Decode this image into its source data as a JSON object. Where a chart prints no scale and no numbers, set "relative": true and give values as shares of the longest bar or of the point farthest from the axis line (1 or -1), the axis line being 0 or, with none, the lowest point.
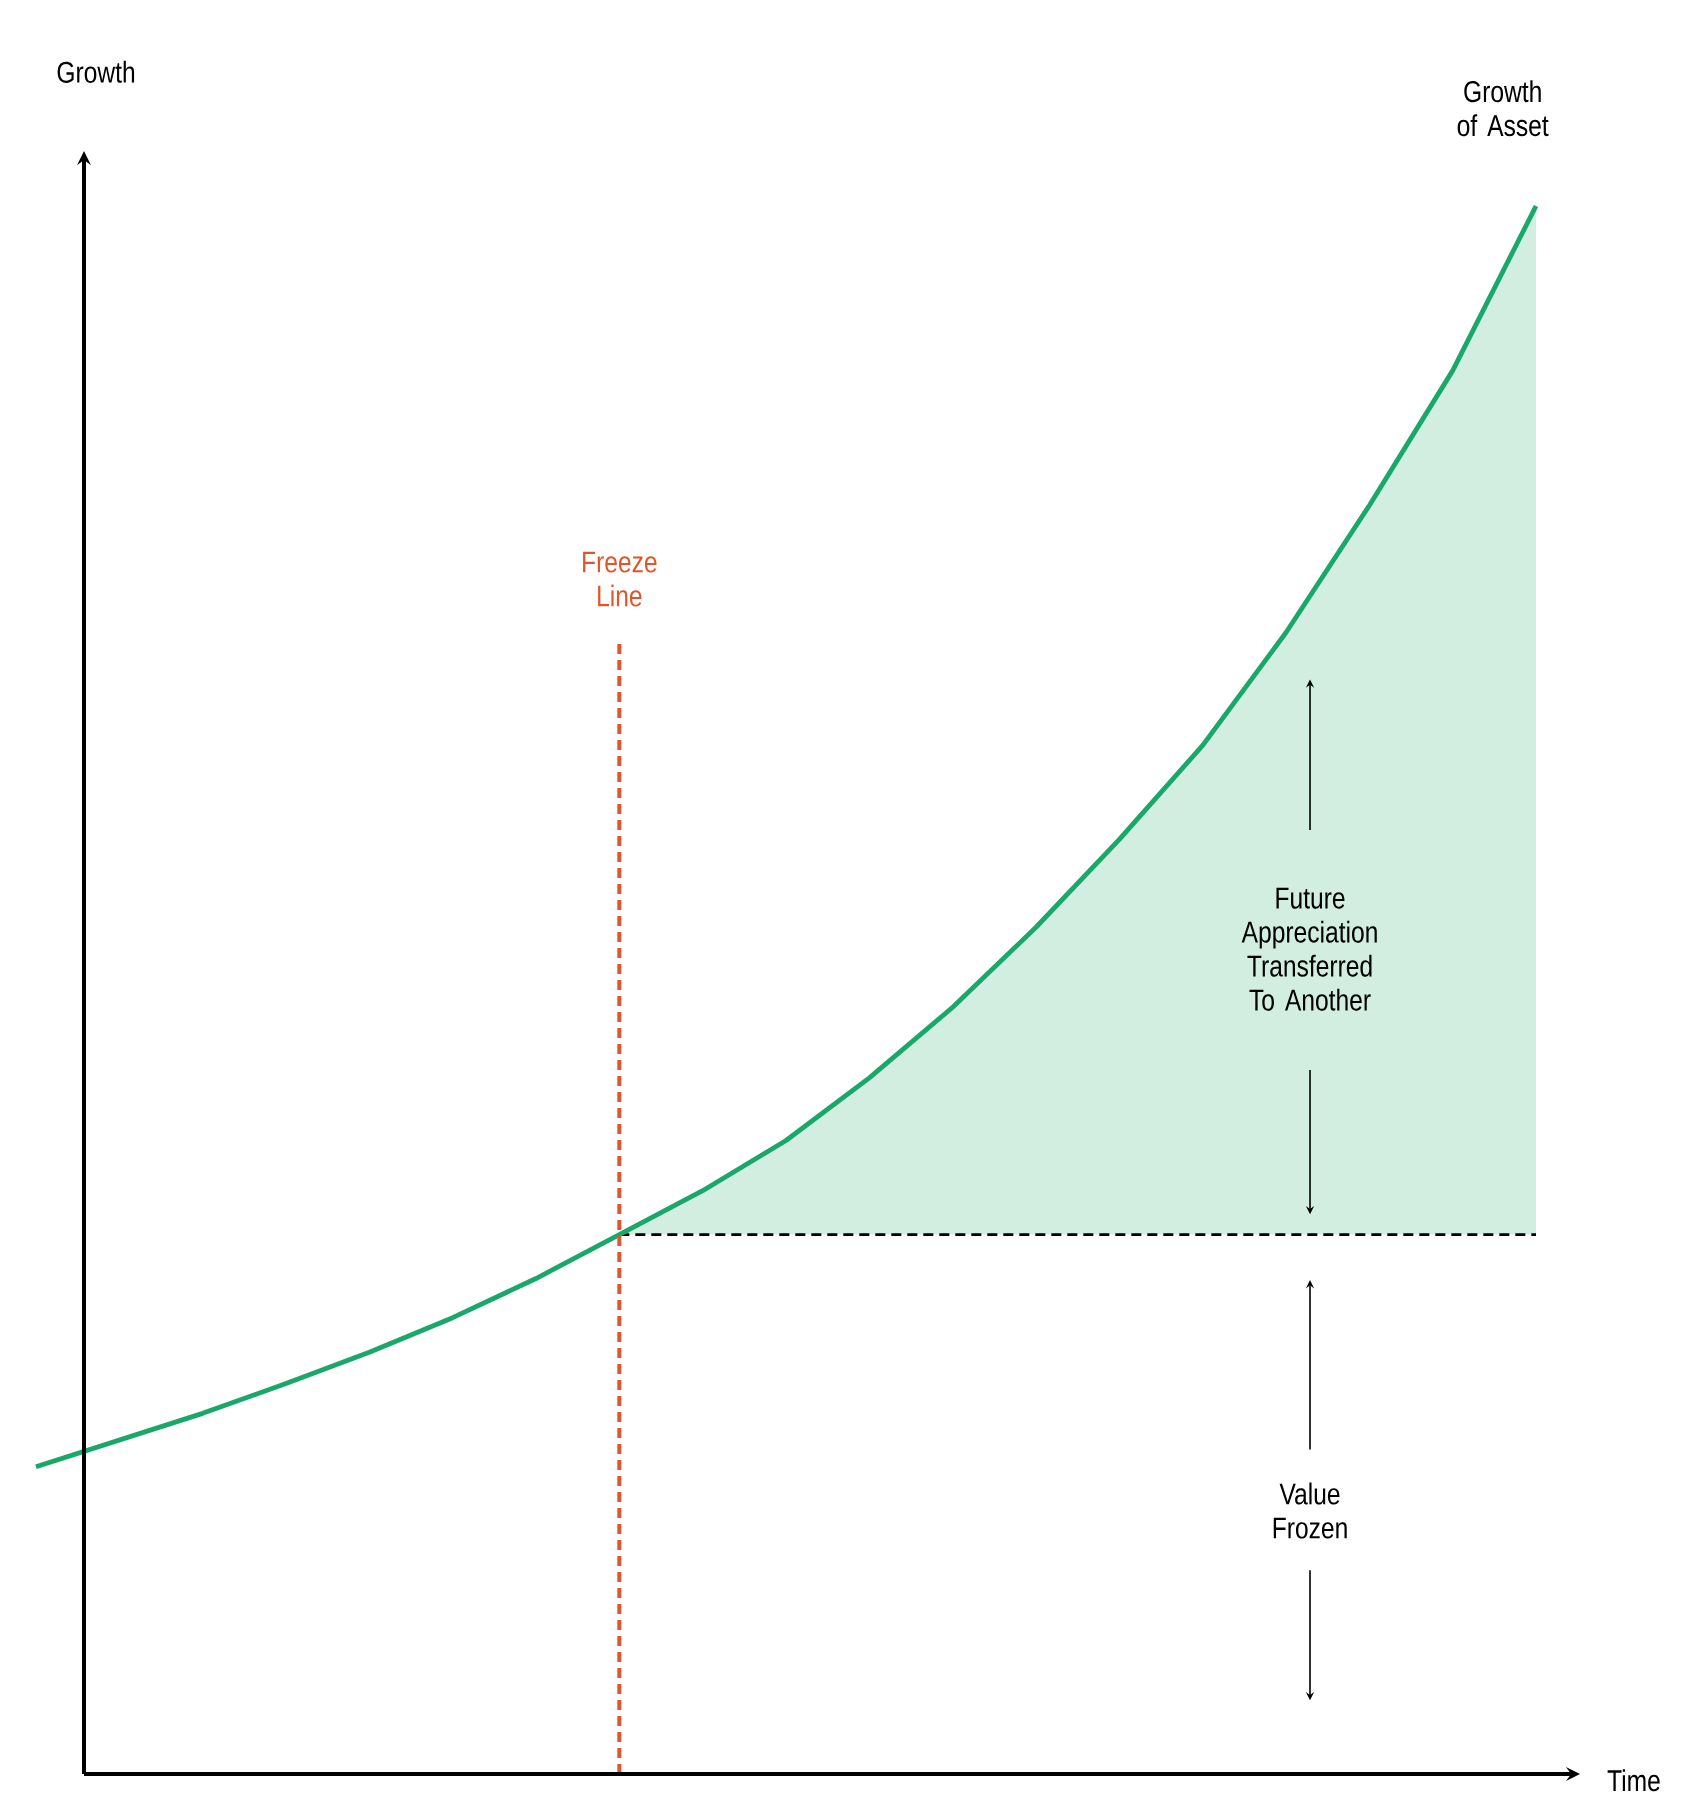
{
  "chart_data": {
    "type": "line",
    "relative": true,
    "xlabel": "Time",
    "ylabel": "Growth",
    "marker": "none",
    "categories": [
      null,
      null,
      null,
      null,
      null,
      null,
      null,
      null,
      null,
      null,
      null,
      null,
      null,
      null,
      null,
      null,
      null,
      null,
      null
    ],
    "series": [
      {
        "name": "Growth of Asset",
        "color": "#1aa86a",
        "values": [
          0.196,
          0.213,
          0.23,
          0.249,
          0.269,
          0.291,
          0.316,
          0.344,
          0.372,
          0.404,
          0.444,
          0.489,
          0.54,
          0.596,
          0.656,
          0.728,
          0.809,
          0.895,
          1.0
        ],
        "lower": [
          null,
          null,
          null,
          null,
          null,
          null,
          null,
          0.344,
          0.344,
          0.344,
          0.344,
          0.344,
          0.344,
          0.344,
          0.344,
          0.344,
          0.344,
          0.344,
          0.344
        ],
        "upper": [
          null,
          null,
          null,
          null,
          null,
          null,
          null,
          0.344,
          0.372,
          0.404,
          0.444,
          0.489,
          0.54,
          0.596,
          0.656,
          0.728,
          0.809,
          0.895,
          1.0
        ]
      }
    ],
    "ref_lines": [
      {
        "axis": "y",
        "value": 0.344,
        "color": "#000000",
        "line_style": "dashed"
      }
    ],
    "annotations": [
      "Freeze Line",
      "Future Appreciation Transferred To Another",
      "Value Frozen"
    ]
  }
}
